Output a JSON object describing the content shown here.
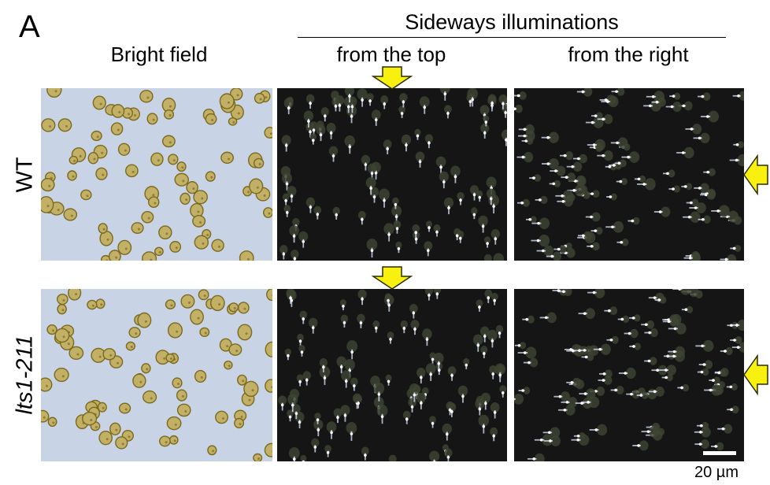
{
  "figure": {
    "panel_label": "A",
    "group_title": "Sideways illuminations",
    "columns": [
      "Bright field",
      "from the top",
      "from the right"
    ],
    "rows": [
      "WT",
      "lts1-211"
    ],
    "scale_label": "20 µm",
    "colors": {
      "bright_bg": "#c9d3e6",
      "cell_fill": "#c3b067",
      "cell_dark": "#7a6a1e",
      "dark_bg": "#141514",
      "arrow_fill": "#f8f10f",
      "arrow_stroke": "#2b2b00"
    },
    "arrows": [
      {
        "panel": "WT / from the top",
        "direction": "down"
      },
      {
        "panel": "WT / from the right",
        "direction": "left"
      },
      {
        "panel": "lts1-211 / from the top",
        "direction": "down"
      },
      {
        "panel": "lts1-211 / from the right",
        "direction": "left"
      }
    ]
  }
}
